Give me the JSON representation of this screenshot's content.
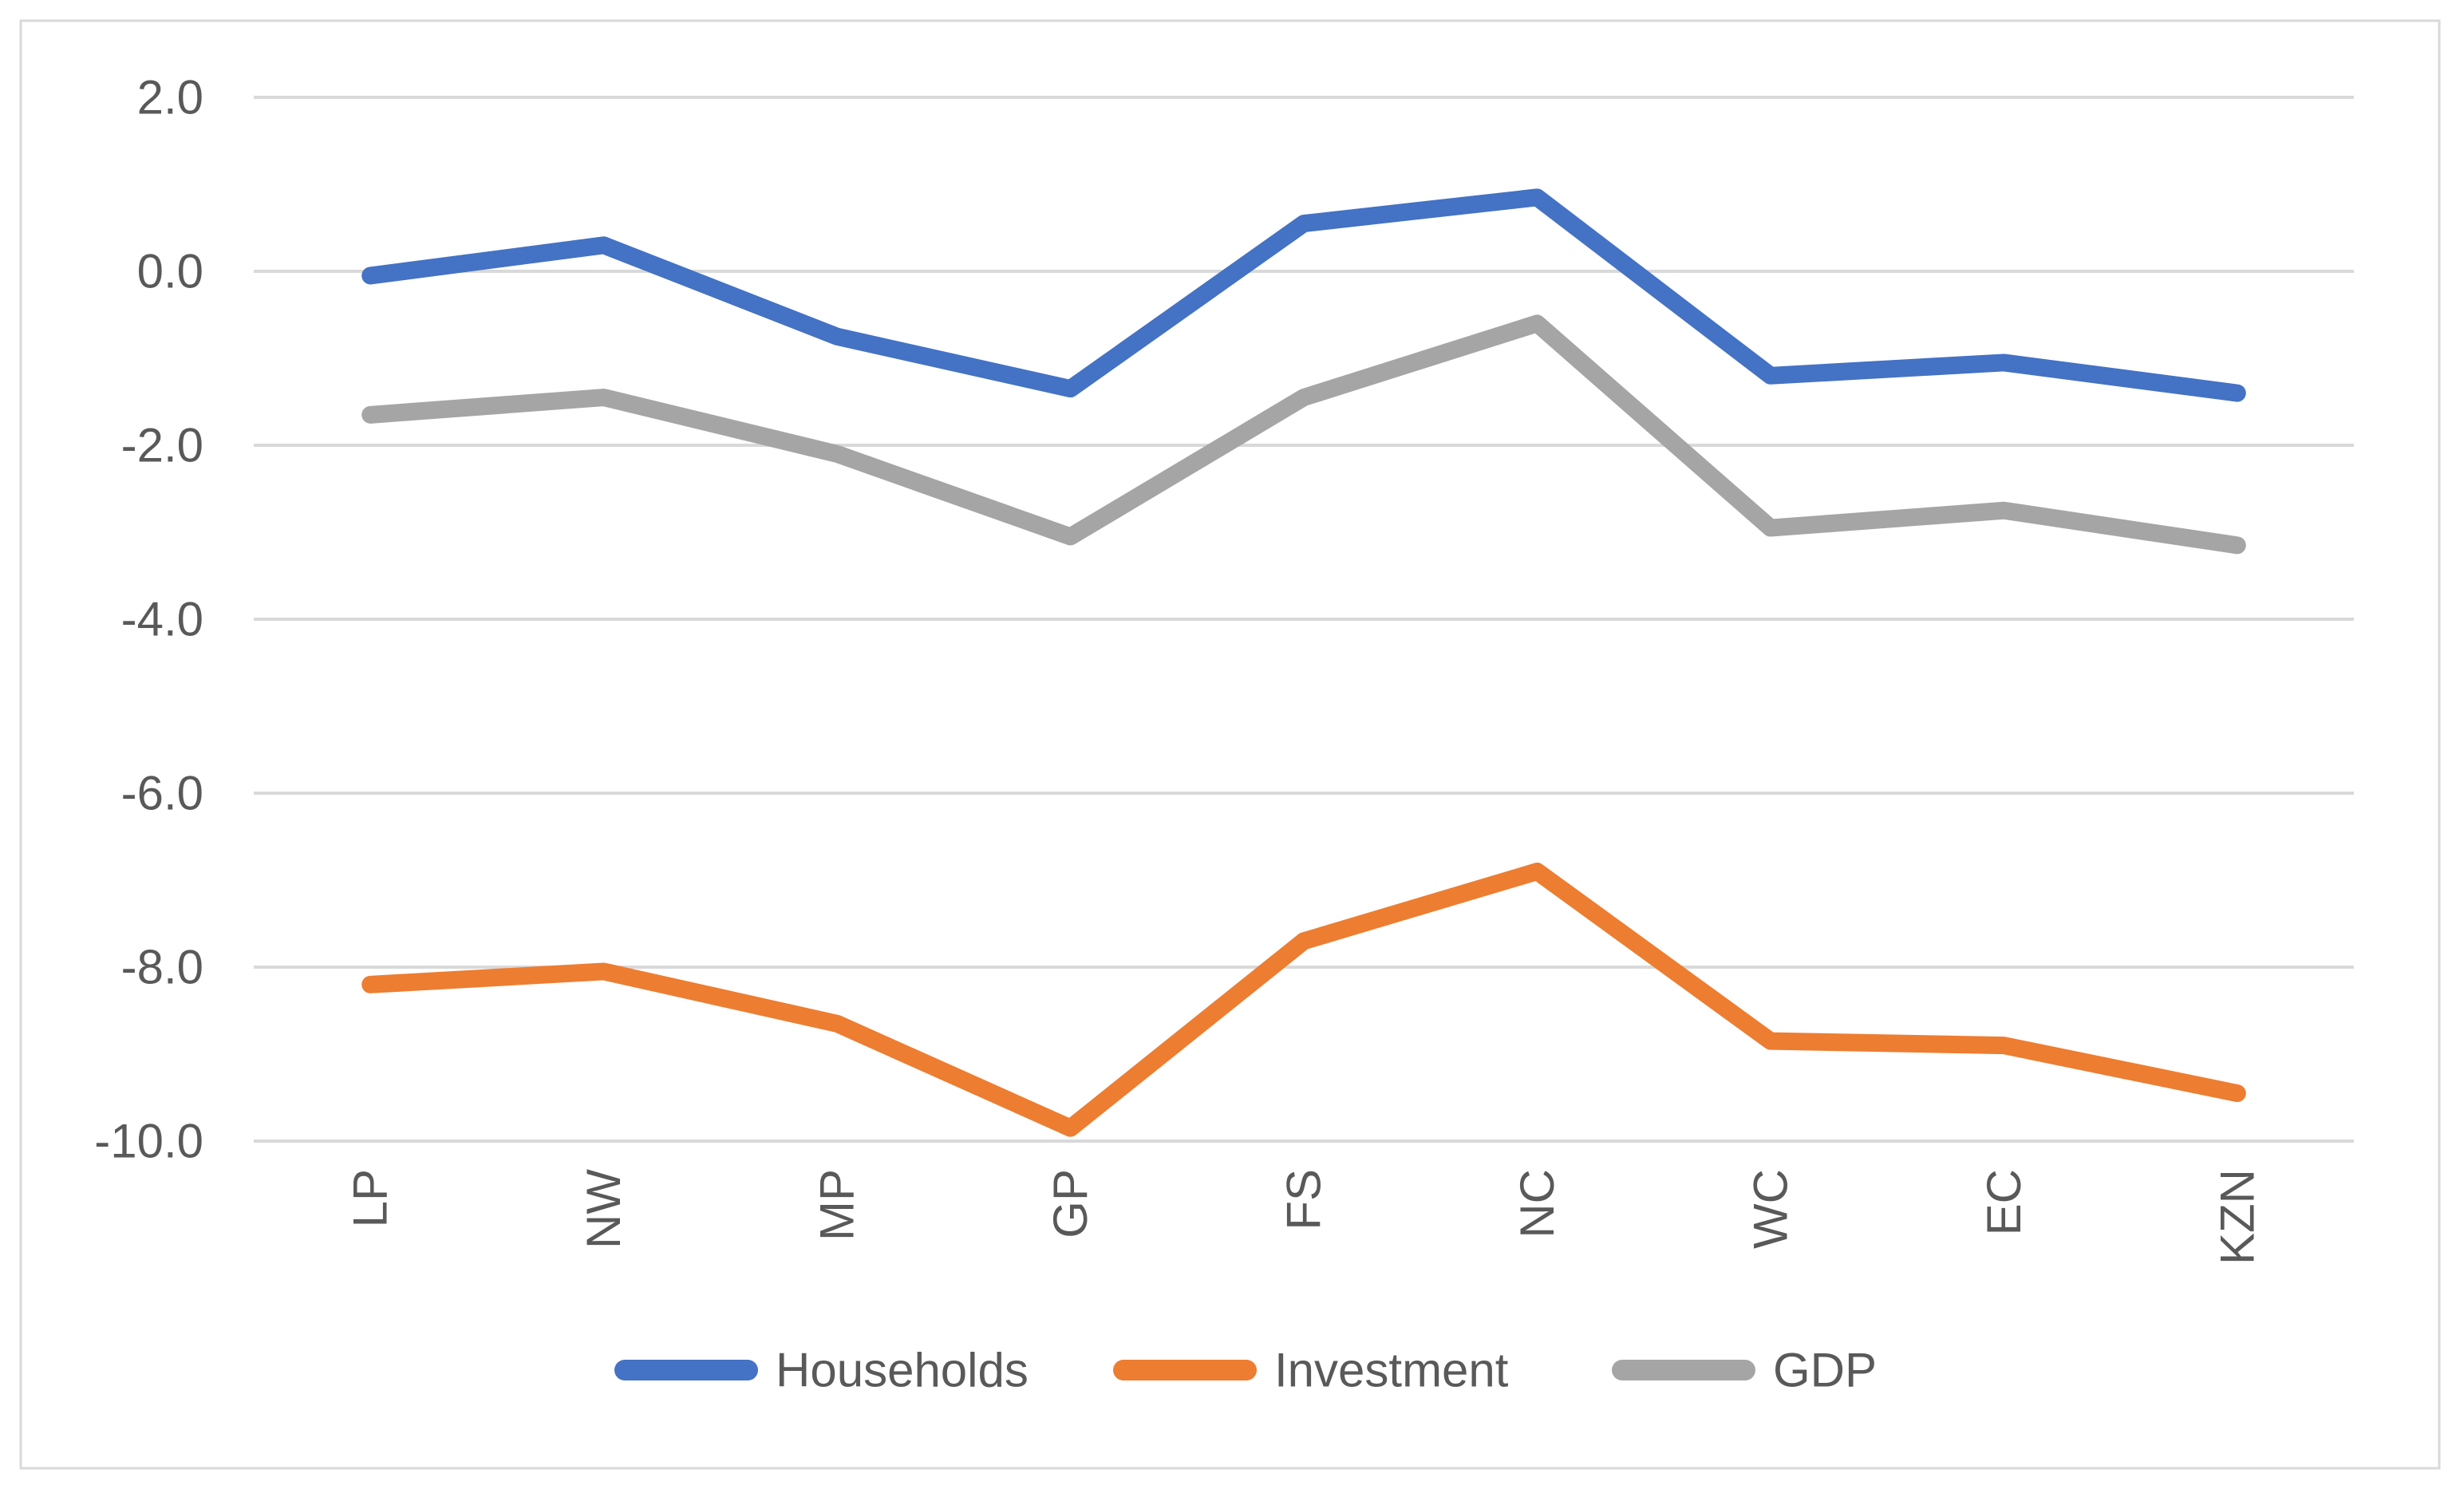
{
  "chart_data": {
    "type": "line",
    "title": "",
    "xlabel": "",
    "ylabel": "",
    "categories": [
      "LP",
      "NW",
      "MP",
      "GP",
      "FS",
      "NC",
      "WC",
      "EC",
      "KZN"
    ],
    "series": [
      {
        "name": "Households",
        "color": "#4472C4",
        "values": [
          -0.05,
          0.3,
          -0.75,
          -1.35,
          0.55,
          0.85,
          -1.2,
          -1.05,
          -1.4
        ]
      },
      {
        "name": "Investment",
        "color": "#ED7D31",
        "values": [
          -8.2,
          -8.05,
          -8.65,
          -9.85,
          -7.7,
          -6.9,
          -8.85,
          -8.9,
          -9.45
        ]
      },
      {
        "name": "GDP",
        "color": "#A5A5A5",
        "values": [
          -1.65,
          -1.45,
          -2.1,
          -3.05,
          -1.45,
          -0.6,
          -2.95,
          -2.75,
          -3.15
        ]
      }
    ],
    "y_axis": {
      "min": -10.0,
      "max": 2.0,
      "step": 2.0,
      "tick_labels": [
        "2.0",
        "0.0",
        "-2.0",
        "-4.0",
        "-6.0",
        "-8.0",
        "-10.0"
      ]
    },
    "x_axis": {
      "label_rotation_degrees": 90
    },
    "grid": true,
    "legend_position": "bottom",
    "colors": {
      "gridline": "#D9D9D9",
      "tick_text": "#595959",
      "border": "#D9D9D9",
      "background": "#FFFFFF"
    }
  }
}
